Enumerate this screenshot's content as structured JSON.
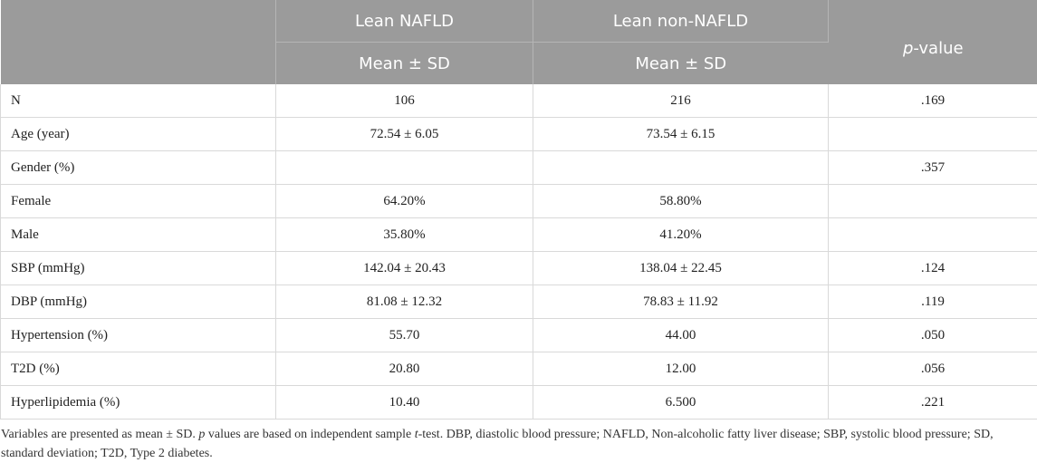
{
  "table": {
    "headers": {
      "blank": "",
      "lean_nafld": "Lean NAFLD",
      "lean_non_nafld": "Lean non-NAFLD",
      "p_value_italic": "p",
      "p_value_rest": "-value",
      "lean_nafld_sub": "Mean ± SD",
      "lean_non_nafld_sub": "Mean ± SD"
    },
    "rows": [
      {
        "label": "N",
        "nafld": "106",
        "non_nafld": "216",
        "p": ".169"
      },
      {
        "label": "Age (year)",
        "nafld": "72.54 ± 6.05",
        "non_nafld": "73.54 ± 6.15",
        "p": ""
      },
      {
        "label": "Gender (%)",
        "nafld": "",
        "non_nafld": "",
        "p": ".357"
      },
      {
        "label": "Female",
        "nafld": "64.20%",
        "non_nafld": "58.80%",
        "p": ""
      },
      {
        "label": "Male",
        "nafld": "35.80%",
        "non_nafld": "41.20%",
        "p": ""
      },
      {
        "label": "SBP (mmHg)",
        "nafld": "142.04 ± 20.43",
        "non_nafld": "138.04 ± 22.45",
        "p": ".124"
      },
      {
        "label": "DBP (mmHg)",
        "nafld": "81.08 ± 12.32",
        "non_nafld": "78.83 ± 11.92",
        "p": ".119"
      },
      {
        "label": "Hypertension (%)",
        "nafld": "55.70",
        "non_nafld": "44.00",
        "p": ".050"
      },
      {
        "label": "T2D (%)",
        "nafld": "20.80",
        "non_nafld": "12.00",
        "p": ".056"
      },
      {
        "label": "Hyperlipidemia (%)",
        "nafld": "10.40",
        "non_nafld": "6.500",
        "p": ".221"
      }
    ]
  },
  "footnote": {
    "part1": "Variables are presented as mean ± SD. ",
    "p_italic": "p",
    "part2": " values are based on independent sample ",
    "t_italic": "t",
    "part3": "-test. DBP, diastolic blood pressure; NAFLD, Non-alcoholic fatty liver disease; SBP, systolic blood pressure; SD, standard deviation; T2D, Type 2 diabetes."
  },
  "colors": {
    "header_bg": "#9b9b9b",
    "header_text": "#ffffff",
    "grid_line": "#d9d9d9"
  }
}
